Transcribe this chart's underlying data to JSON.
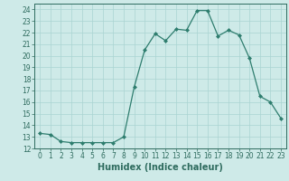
{
  "x": [
    0,
    1,
    2,
    3,
    4,
    5,
    6,
    7,
    8,
    9,
    10,
    11,
    12,
    13,
    14,
    15,
    16,
    17,
    18,
    19,
    20,
    21,
    22,
    23
  ],
  "y": [
    13.3,
    13.2,
    12.6,
    12.5,
    12.5,
    12.5,
    12.5,
    12.5,
    13.0,
    17.3,
    20.5,
    21.9,
    21.3,
    22.3,
    22.2,
    23.9,
    23.9,
    21.7,
    22.2,
    21.8,
    19.8,
    16.5,
    16.0,
    14.6
  ],
  "line_color": "#2e7d6e",
  "marker": "D",
  "marker_size": 2.0,
  "bg_color": "#ceeae8",
  "grid_color": "#aad4d2",
  "xlabel": "Humidex (Indice chaleur)",
  "xlim": [
    -0.5,
    23.5
  ],
  "ylim": [
    12,
    24.5
  ],
  "yticks": [
    12,
    13,
    14,
    15,
    16,
    17,
    18,
    19,
    20,
    21,
    22,
    23,
    24
  ],
  "xticks": [
    0,
    1,
    2,
    3,
    4,
    5,
    6,
    7,
    8,
    9,
    10,
    11,
    12,
    13,
    14,
    15,
    16,
    17,
    18,
    19,
    20,
    21,
    22,
    23
  ],
  "tick_label_fontsize": 5.5,
  "xlabel_fontsize": 7.0,
  "text_color": "#2e6b5e",
  "line_width": 0.9
}
